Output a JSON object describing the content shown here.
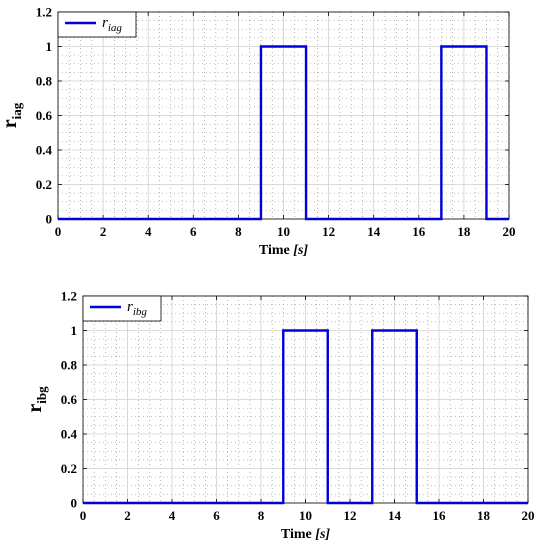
{
  "chart_data": [
    {
      "type": "line",
      "ylabel": "r",
      "ylabel_sub": "iag",
      "xlabel": "Time",
      "xlabel_unit": "[s]",
      "xlim": [
        0,
        20
      ],
      "ylim": [
        0,
        1.2
      ],
      "x_ticks": [
        "0",
        "2",
        "4",
        "6",
        "8",
        "10",
        "12",
        "14",
        "16",
        "18",
        "20"
      ],
      "y_ticks": [
        "0",
        "0.2",
        "0.4",
        "0.6",
        "0.8",
        "1",
        "1.2"
      ],
      "grid": true,
      "legend_position": "top-left",
      "colors": {
        "series": "#0000dd"
      },
      "series": [
        {
          "name": "r",
          "name_sub": "iag",
          "x": [
            0,
            9,
            9,
            11,
            11,
            17,
            17,
            19,
            19,
            20
          ],
          "y": [
            0,
            0,
            1,
            1,
            0,
            0,
            1,
            1,
            0,
            0
          ]
        }
      ]
    },
    {
      "type": "line",
      "ylabel": "r",
      "ylabel_sub": "ibg",
      "xlabel": "Time",
      "xlabel_unit": "[s]",
      "xlim": [
        0,
        20
      ],
      "ylim": [
        0,
        1.2
      ],
      "x_ticks": [
        "0",
        "2",
        "4",
        "6",
        "8",
        "10",
        "12",
        "14",
        "16",
        "18",
        "20"
      ],
      "y_ticks": [
        "0",
        "0.2",
        "0.4",
        "0.6",
        "0.8",
        "1",
        "1.2"
      ],
      "grid": true,
      "legend_position": "top-left",
      "colors": {
        "series": "#0000dd"
      },
      "series": [
        {
          "name": "r",
          "name_sub": "ibg",
          "x": [
            0,
            9,
            9,
            11,
            11,
            13,
            13,
            15,
            15,
            20
          ],
          "y": [
            0,
            0,
            1,
            1,
            0,
            0,
            1,
            1,
            0,
            0
          ]
        }
      ]
    }
  ]
}
